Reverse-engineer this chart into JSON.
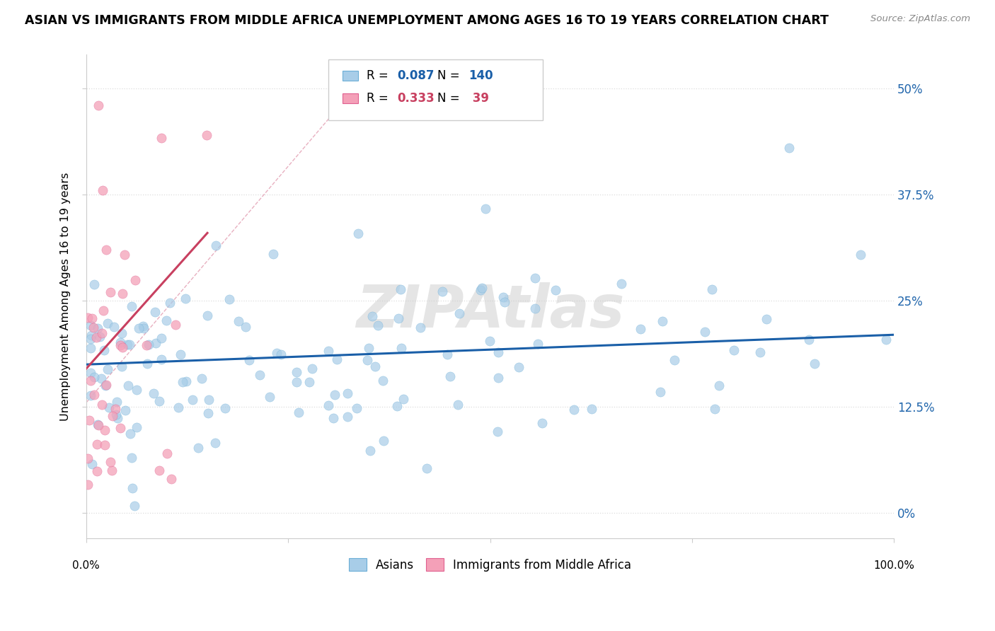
{
  "title": "ASIAN VS IMMIGRANTS FROM MIDDLE AFRICA UNEMPLOYMENT AMONG AGES 16 TO 19 YEARS CORRELATION CHART",
  "source": "Source: ZipAtlas.com",
  "ylabel": "Unemployment Among Ages 16 to 19 years",
  "xlim": [
    0,
    100
  ],
  "ylim": [
    -3,
    54
  ],
  "ytick_vals": [
    0,
    12.5,
    25,
    37.5,
    50
  ],
  "ytick_labels": [
    "0%",
    "12.5%",
    "25%",
    "37.5%",
    "50%"
  ],
  "blue_color": "#a8cde8",
  "blue_edge": "#6baed6",
  "pink_color": "#f4a0b8",
  "pink_edge": "#e06090",
  "blue_line_color": "#1a5fa8",
  "pink_line_color": "#c84060",
  "pink_dash_color": "#e8b0c0",
  "watermark": "ZIPAtlas",
  "right_ytick_color": "#2166ac",
  "grid_color": "#dddddd"
}
